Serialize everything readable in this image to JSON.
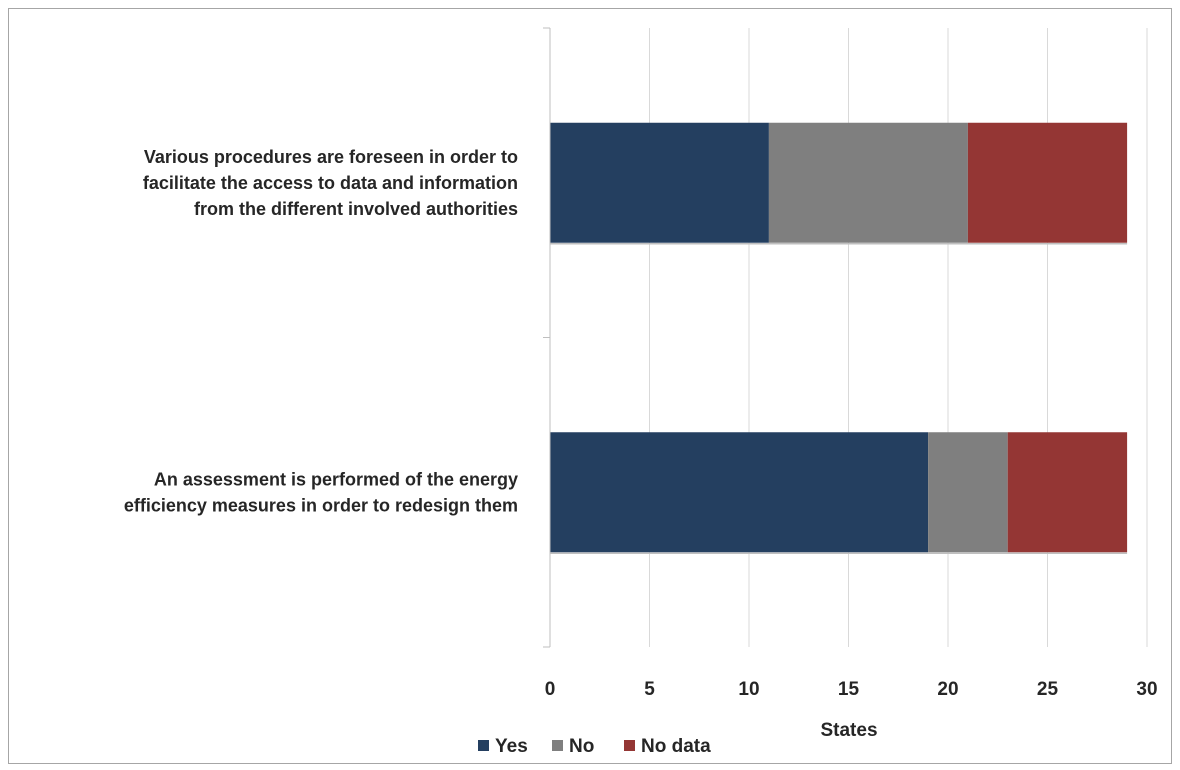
{
  "chart_data": {
    "type": "bar",
    "orientation": "horizontal",
    "stacked": true,
    "categories": [
      "Various procedures are foreseen in order to facilitate the access to data and information from the different involved authorities",
      "An assessment is performed of the energy efficiency measures in order to redesign them"
    ],
    "category_lines": [
      [
        "Various procedures are foreseen in order to",
        "facilitate the access to data and information",
        "from the different involved authorities"
      ],
      [
        "An assessment is performed of the energy",
        "efficiency measures in order to redesign them"
      ]
    ],
    "series": [
      {
        "name": "Yes",
        "color": "#243f60",
        "values": [
          11,
          19
        ]
      },
      {
        "name": "No",
        "color": "#7f7f7f",
        "values": [
          10,
          4
        ]
      },
      {
        "name": "No data",
        "color": "#943634",
        "values": [
          8,
          6
        ]
      }
    ],
    "xlabel": "States",
    "xlim": [
      0,
      30
    ],
    "xticks": [
      0,
      5,
      10,
      15,
      20,
      25,
      30
    ],
    "grid": true,
    "legend_position": "bottom"
  }
}
